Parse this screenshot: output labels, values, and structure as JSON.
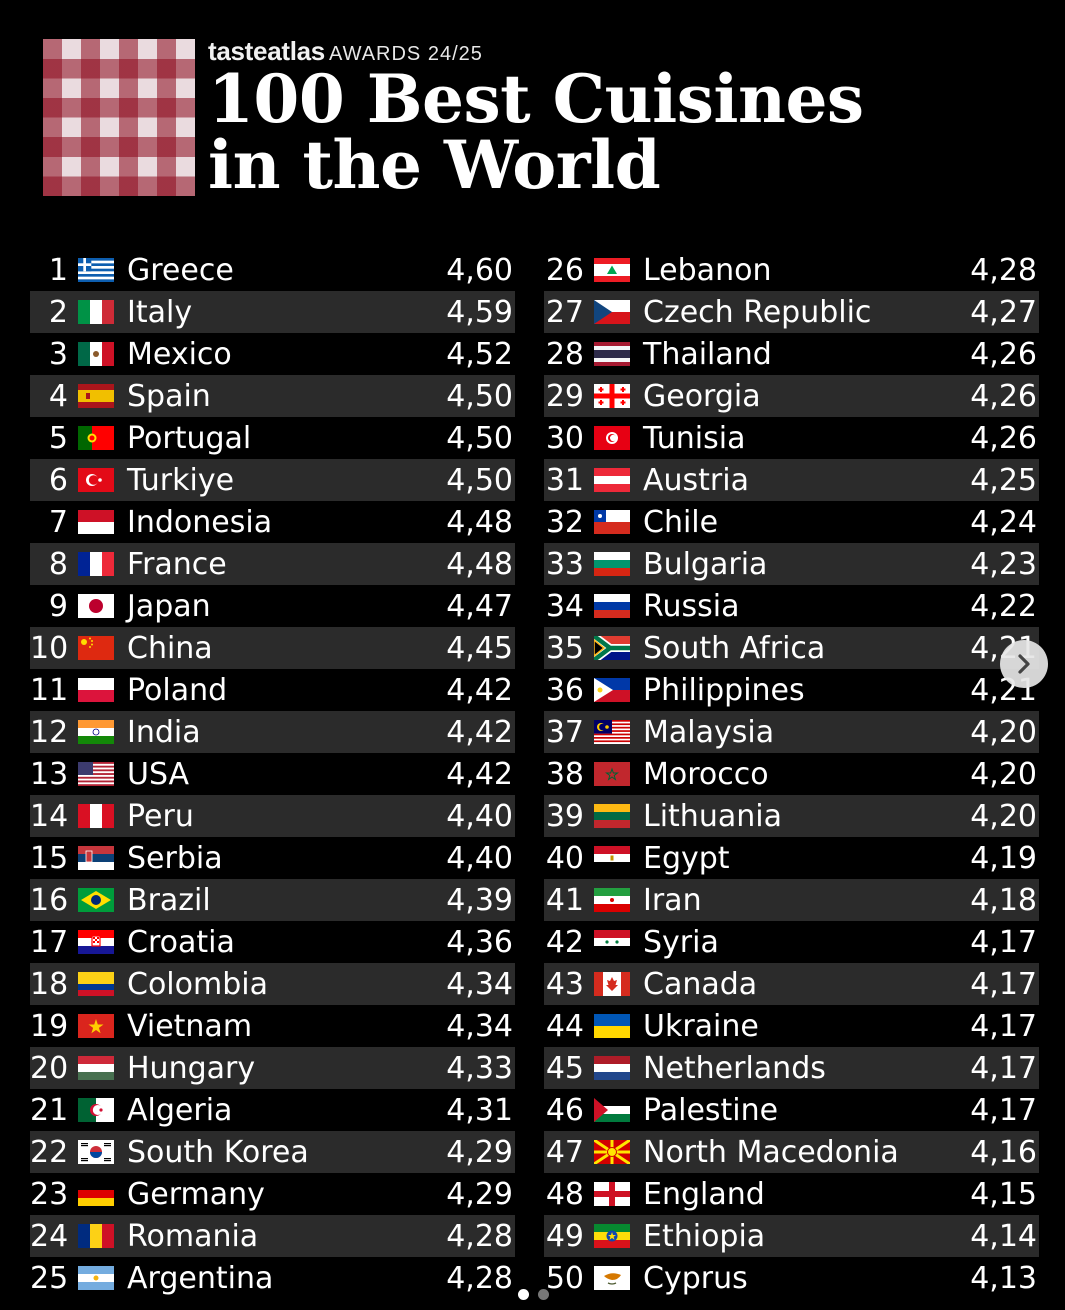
{
  "header": {
    "brand": "tasteatlas",
    "awards": "AWARDS 24/25",
    "title_line1": "100 Best Cuisines",
    "title_line2": "in the World"
  },
  "icons": {
    "logo": "checkered-tablecloth-logo",
    "next": "chevron-right-icon"
  },
  "colors": {
    "background": "#000000",
    "alt_row": "#2b2b2b",
    "logo_red": "#a0142a"
  },
  "rankings": [
    {
      "rank": "1",
      "country": "Greece",
      "score": "4,60",
      "flag": "greece"
    },
    {
      "rank": "2",
      "country": "Italy",
      "score": "4,59",
      "flag": "italy"
    },
    {
      "rank": "3",
      "country": "Mexico",
      "score": "4,52",
      "flag": "mexico"
    },
    {
      "rank": "4",
      "country": "Spain",
      "score": "4,50",
      "flag": "spain"
    },
    {
      "rank": "5",
      "country": "Portugal",
      "score": "4,50",
      "flag": "portugal"
    },
    {
      "rank": "6",
      "country": "Turkiye",
      "score": "4,50",
      "flag": "turkiye"
    },
    {
      "rank": "7",
      "country": "Indonesia",
      "score": "4,48",
      "flag": "indonesia"
    },
    {
      "rank": "8",
      "country": "France",
      "score": "4,48",
      "flag": "france"
    },
    {
      "rank": "9",
      "country": "Japan",
      "score": "4,47",
      "flag": "japan"
    },
    {
      "rank": "10",
      "country": "China",
      "score": "4,45",
      "flag": "china"
    },
    {
      "rank": "11",
      "country": "Poland",
      "score": "4,42",
      "flag": "poland"
    },
    {
      "rank": "12",
      "country": "India",
      "score": "4,42",
      "flag": "india"
    },
    {
      "rank": "13",
      "country": "USA",
      "score": "4,42",
      "flag": "usa"
    },
    {
      "rank": "14",
      "country": "Peru",
      "score": "4,40",
      "flag": "peru"
    },
    {
      "rank": "15",
      "country": "Serbia",
      "score": "4,40",
      "flag": "serbia"
    },
    {
      "rank": "16",
      "country": "Brazil",
      "score": "4,39",
      "flag": "brazil"
    },
    {
      "rank": "17",
      "country": "Croatia",
      "score": "4,36",
      "flag": "croatia"
    },
    {
      "rank": "18",
      "country": "Colombia",
      "score": "4,34",
      "flag": "colombia"
    },
    {
      "rank": "19",
      "country": "Vietnam",
      "score": "4,34",
      "flag": "vietnam"
    },
    {
      "rank": "20",
      "country": "Hungary",
      "score": "4,33",
      "flag": "hungary"
    },
    {
      "rank": "21",
      "country": "Algeria",
      "score": "4,31",
      "flag": "algeria"
    },
    {
      "rank": "22",
      "country": "South Korea",
      "score": "4,29",
      "flag": "south-korea"
    },
    {
      "rank": "23",
      "country": "Germany",
      "score": "4,29",
      "flag": "germany"
    },
    {
      "rank": "24",
      "country": "Romania",
      "score": "4,28",
      "flag": "romania"
    },
    {
      "rank": "25",
      "country": "Argentina",
      "score": "4,28",
      "flag": "argentina"
    },
    {
      "rank": "26",
      "country": "Lebanon",
      "score": "4,28",
      "flag": "lebanon"
    },
    {
      "rank": "27",
      "country": "Czech Republic",
      "score": "4,27",
      "flag": "czech-republic"
    },
    {
      "rank": "28",
      "country": "Thailand",
      "score": "4,26",
      "flag": "thailand"
    },
    {
      "rank": "29",
      "country": "Georgia",
      "score": "4,26",
      "flag": "georgia"
    },
    {
      "rank": "30",
      "country": "Tunisia",
      "score": "4,26",
      "flag": "tunisia"
    },
    {
      "rank": "31",
      "country": "Austria",
      "score": "4,25",
      "flag": "austria"
    },
    {
      "rank": "32",
      "country": "Chile",
      "score": "4,24",
      "flag": "chile"
    },
    {
      "rank": "33",
      "country": "Bulgaria",
      "score": "4,23",
      "flag": "bulgaria"
    },
    {
      "rank": "34",
      "country": "Russia",
      "score": "4,22",
      "flag": "russia"
    },
    {
      "rank": "35",
      "country": "South Africa",
      "score": "4,21",
      "flag": "south-africa"
    },
    {
      "rank": "36",
      "country": "Philippines",
      "score": "4,21",
      "flag": "philippines"
    },
    {
      "rank": "37",
      "country": "Malaysia",
      "score": "4,20",
      "flag": "malaysia"
    },
    {
      "rank": "38",
      "country": "Morocco",
      "score": "4,20",
      "flag": "morocco"
    },
    {
      "rank": "39",
      "country": "Lithuania",
      "score": "4,20",
      "flag": "lithuania"
    },
    {
      "rank": "40",
      "country": "Egypt",
      "score": "4,19",
      "flag": "egypt"
    },
    {
      "rank": "41",
      "country": "Iran",
      "score": "4,18",
      "flag": "iran"
    },
    {
      "rank": "42",
      "country": "Syria",
      "score": "4,17",
      "flag": "syria"
    },
    {
      "rank": "43",
      "country": "Canada",
      "score": "4,17",
      "flag": "canada"
    },
    {
      "rank": "44",
      "country": "Ukraine",
      "score": "4,17",
      "flag": "ukraine"
    },
    {
      "rank": "45",
      "country": "Netherlands",
      "score": "4,17",
      "flag": "netherlands"
    },
    {
      "rank": "46",
      "country": "Palestine",
      "score": "4,17",
      "flag": "palestine"
    },
    {
      "rank": "47",
      "country": "North Macedonia",
      "score": "4,16",
      "flag": "north-macedonia"
    },
    {
      "rank": "48",
      "country": "England",
      "score": "4,15",
      "flag": "england"
    },
    {
      "rank": "49",
      "country": "Ethiopia",
      "score": "4,14",
      "flag": "ethiopia"
    },
    {
      "rank": "50",
      "country": "Cyprus",
      "score": "4,13",
      "flag": "cyprus"
    }
  ],
  "carousel": {
    "total_pages": 2,
    "current_page": 1
  }
}
